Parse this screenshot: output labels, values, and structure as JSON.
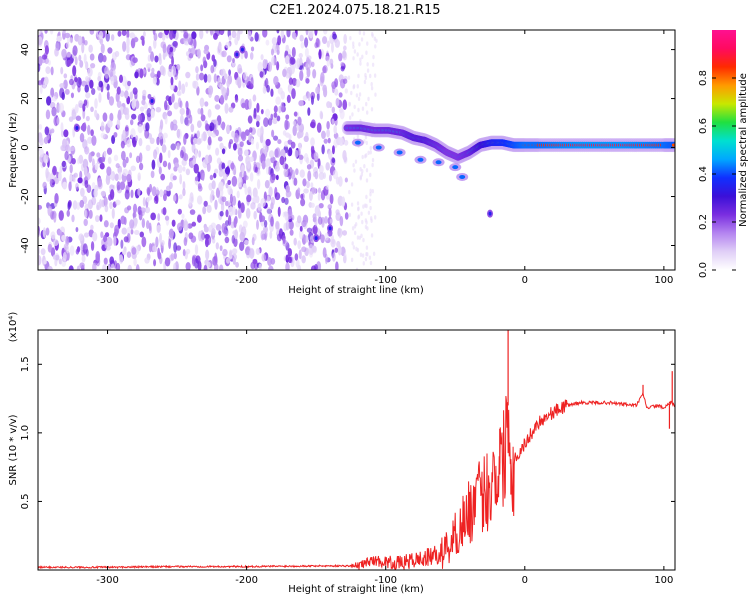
{
  "title": "C2E1.2024.075.18.21.R15",
  "chart_data": [
    {
      "type": "heatmap",
      "xlabel": "Height of straight line (km)",
      "ylabel": "Frequency (Hz)",
      "xlim": [
        -350,
        108
      ],
      "ylim": [
        -50,
        48
      ],
      "xticks": [
        -300,
        -200,
        -100,
        0,
        100
      ],
      "yticks": [
        -40,
        -20,
        0,
        20,
        40
      ],
      "colorbar": {
        "label": "Normalized spectral amplitude",
        "range": [
          0,
          1
        ],
        "ticks": [
          0.0,
          0.2,
          0.4,
          0.6,
          0.8
        ],
        "colormap": [
          "#ffffff",
          "#e0cff7",
          "#b484f0",
          "#7a2ee0",
          "#3b10d8",
          "#1030ff",
          "#00a8ff",
          "#00e0d0",
          "#20e040",
          "#c8e800",
          "#ff9a00",
          "#ff2a00",
          "#ff0a60",
          "#ff1090"
        ]
      },
      "noise_region_x": [
        -350,
        -128
      ],
      "signal_trace": [
        {
          "x": -128,
          "y": 8,
          "amp": 0.45
        },
        {
          "x": -118,
          "y": 8,
          "amp": 0.5
        },
        {
          "x": -108,
          "y": 7,
          "amp": 0.48
        },
        {
          "x": -98,
          "y": 7,
          "amp": 0.5
        },
        {
          "x": -88,
          "y": 6,
          "amp": 0.5
        },
        {
          "x": -80,
          "y": 4,
          "amp": 0.55
        },
        {
          "x": -72,
          "y": 3,
          "amp": 0.55
        },
        {
          "x": -64,
          "y": 1,
          "amp": 0.5
        },
        {
          "x": -56,
          "y": -2,
          "amp": 0.45
        },
        {
          "x": -48,
          "y": -4,
          "amp": 0.45
        },
        {
          "x": -40,
          "y": -2,
          "amp": 0.5
        },
        {
          "x": -32,
          "y": 1,
          "amp": 0.6
        },
        {
          "x": -24,
          "y": 2,
          "amp": 0.7
        },
        {
          "x": -16,
          "y": 2,
          "amp": 0.75
        },
        {
          "x": -8,
          "y": 1,
          "amp": 0.8
        },
        {
          "x": 0,
          "y": 1,
          "amp": 0.85
        },
        {
          "x": 10,
          "y": 1,
          "amp": 0.85
        },
        {
          "x": 25,
          "y": 1,
          "amp": 0.88
        },
        {
          "x": 40,
          "y": 1,
          "amp": 0.9
        },
        {
          "x": 55,
          "y": 1,
          "amp": 0.9
        },
        {
          "x": 70,
          "y": 1,
          "amp": 0.9
        },
        {
          "x": 85,
          "y": 1,
          "amp": 0.88
        },
        {
          "x": 100,
          "y": 1,
          "amp": 0.85
        },
        {
          "x": 108,
          "y": 1,
          "amp": 0.82
        }
      ],
      "secondary_trace": [
        {
          "x": -120,
          "y": 2
        },
        {
          "x": -105,
          "y": 0
        },
        {
          "x": -90,
          "y": -2
        },
        {
          "x": -75,
          "y": -5
        },
        {
          "x": -62,
          "y": -6
        },
        {
          "x": -50,
          "y": -8
        },
        {
          "x": -45,
          "y": -12
        }
      ],
      "isolated_points": [
        {
          "x": -322,
          "y": 8
        },
        {
          "x": -268,
          "y": 19
        },
        {
          "x": -207,
          "y": 38
        },
        {
          "x": -203,
          "y": 40
        },
        {
          "x": -150,
          "y": -37
        },
        {
          "x": -140,
          "y": -33
        },
        {
          "x": -25,
          "y": -27
        }
      ]
    },
    {
      "type": "line",
      "xlabel": "Height of straight line (km)",
      "ylabel": "SNR (10 * v/v)",
      "y_multiplier": "(x10⁴)",
      "xlim": [
        -350,
        108
      ],
      "ylim": [
        0,
        1.75
      ],
      "xticks": [
        -300,
        -200,
        -100,
        0,
        100
      ],
      "yticks": [
        0.5,
        1.0,
        1.5
      ],
      "color": "#ee2222",
      "series": [
        {
          "x": [
            -350,
            -300,
            -250,
            -200,
            -150,
            -120,
            -110,
            -100,
            -90,
            -80,
            -70,
            -60,
            -55,
            -50,
            -45,
            -40,
            -35,
            -30,
            -25,
            -20,
            -15,
            -12,
            -10,
            -5,
            0,
            5,
            10,
            20,
            30,
            40,
            50,
            60,
            70,
            80,
            85,
            88,
            95,
            100,
            105,
            108
          ],
          "y": [
            0.02,
            0.02,
            0.025,
            0.025,
            0.03,
            0.03,
            0.07,
            0.06,
            0.05,
            0.07,
            0.09,
            0.12,
            0.18,
            0.25,
            0.35,
            0.42,
            0.5,
            0.55,
            0.62,
            0.75,
            0.82,
            1.2,
            0.78,
            0.84,
            0.92,
            1.0,
            1.08,
            1.15,
            1.2,
            1.22,
            1.22,
            1.22,
            1.21,
            1.2,
            1.28,
            1.18,
            1.2,
            1.18,
            1.22,
            1.2
          ]
        }
      ],
      "spikes": [
        {
          "x": -18,
          "y": 1.03
        },
        {
          "x": -12,
          "y": 1.75
        },
        {
          "x": -10,
          "y": 0.55
        },
        {
          "x": 85,
          "y": 1.35
        },
        {
          "x": 104,
          "y": 1.03
        },
        {
          "x": 106,
          "y": 1.45
        }
      ]
    }
  ]
}
